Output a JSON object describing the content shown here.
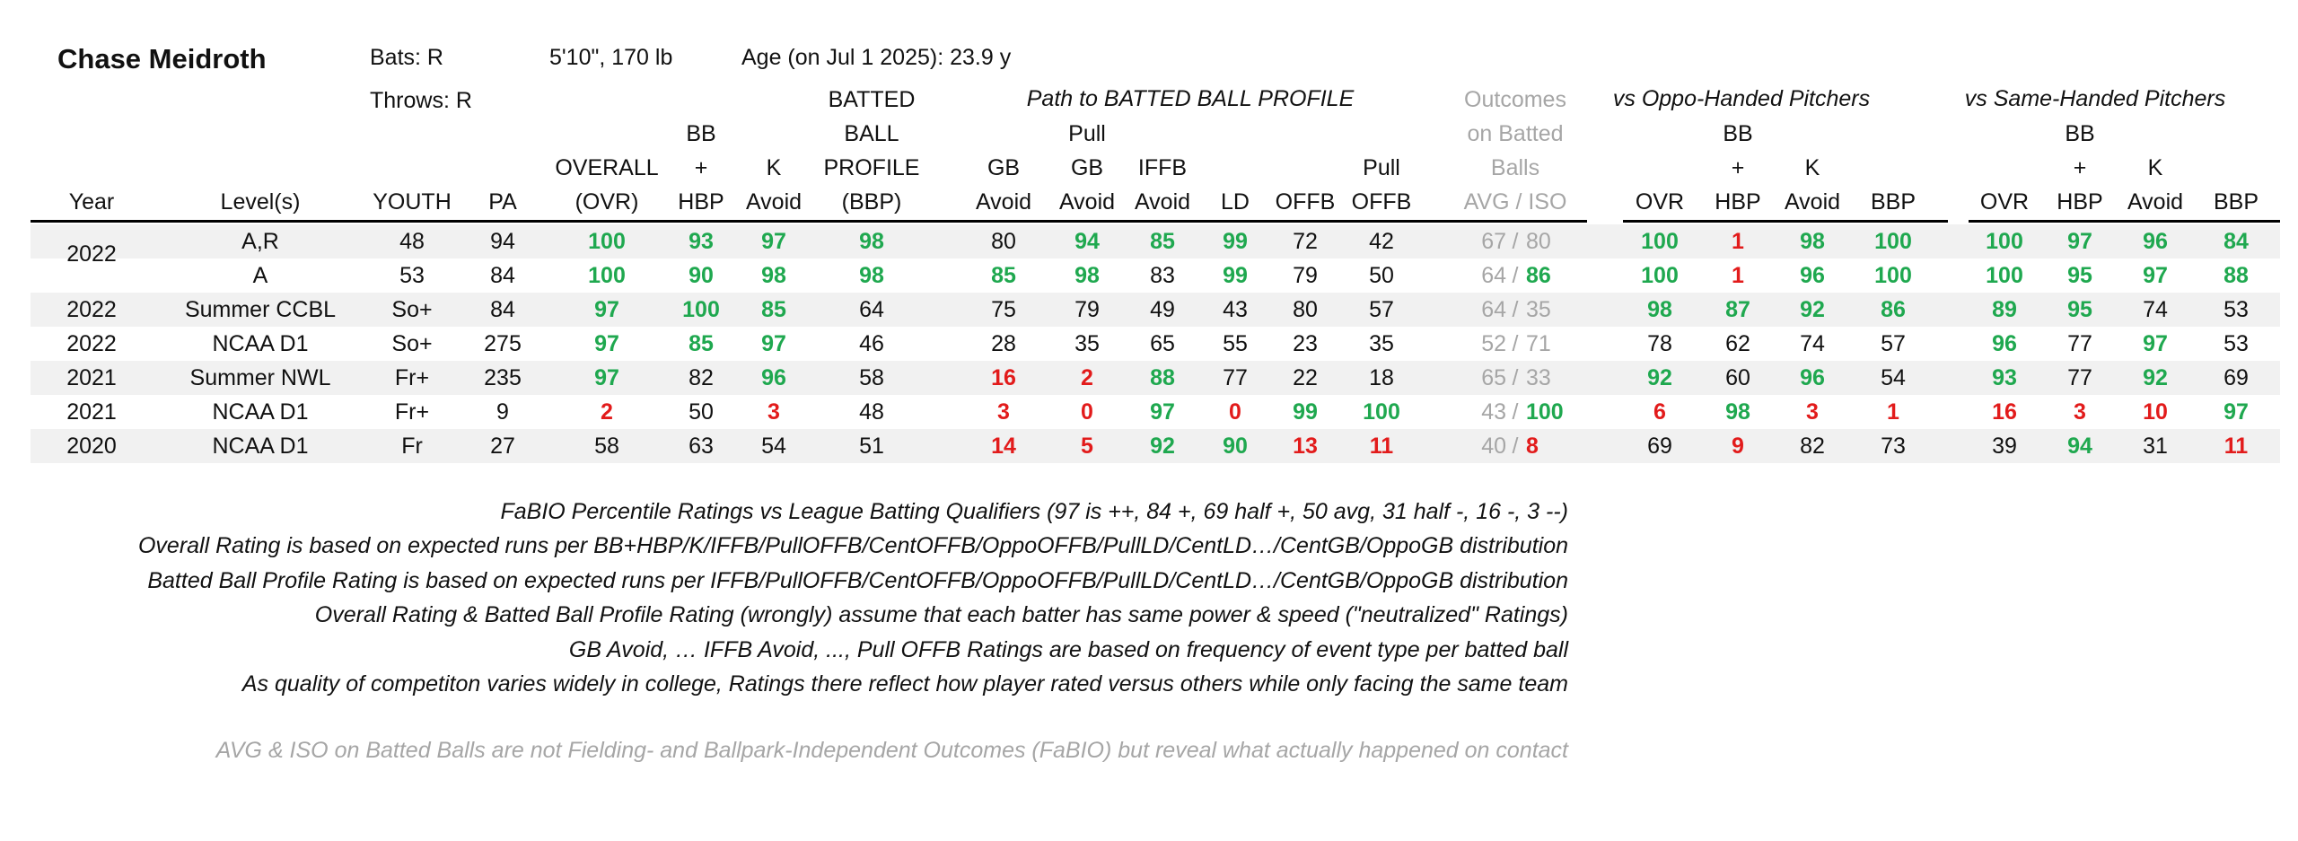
{
  "player": {
    "name": "Chase Meidroth",
    "bats": "Bats: R",
    "throws": "Throws: R",
    "size": "5'10\", 170 lb",
    "age": "Age (on Jul 1 2025): 23.9 y"
  },
  "groups": {
    "path": "Path to BATTED BALL PROFILE",
    "oppo": "vs Oppo-Handed Pitchers",
    "same": "vs Same-Handed Pitchers"
  },
  "headers": {
    "year": "Year",
    "level": "Level(s)",
    "youth": "YOUTH",
    "pa": "PA",
    "ovr_1": "OVERALL",
    "ovr_2": "(OVR)",
    "bb_1": "BB",
    "bb_2": "+",
    "bb_3": "HBP",
    "k_1": "K",
    "k_2": "Avoid",
    "bbp_1": "BATTED",
    "bbp_2": "BALL",
    "bbp_3": "PROFILE",
    "bbp_4": "(BBP)",
    "gb_1": "GB",
    "gb_2": "Avoid",
    "pgb_1": "Pull",
    "pgb_2": "GB",
    "pgb_3": "Avoid",
    "iffb_1": "IFFB",
    "iffb_2": "Avoid",
    "ld": "LD",
    "offb": "OFFB",
    "poffb_1": "Pull",
    "poffb_2": "OFFB",
    "out_1": "Outcomes",
    "out_2": "on Batted",
    "out_3": "Balls",
    "out_4": "AVG  /  ISO",
    "o_ovr": "OVR",
    "o_bb_1": "BB",
    "o_bb_2": "+",
    "o_bb_3": "HBP",
    "o_k_1": "K",
    "o_k_2": "Avoid",
    "o_bbp": "BBP",
    "s_ovr": "OVR",
    "s_bb_1": "BB",
    "s_bb_2": "+",
    "s_bb_3": "HBP",
    "s_k_1": "K",
    "s_k_2": "Avoid",
    "s_bbp": "BBP"
  },
  "rows": [
    {
      "year": "",
      "level": "A,R",
      "youth": "48",
      "pa": "94",
      "ovr": "100",
      "bb": "93",
      "k": "97",
      "bbp": "98",
      "gb": "80",
      "pgb": "94",
      "iffb": "85",
      "ld": "99",
      "offb": "72",
      "poffb": "42",
      "avg": "67",
      "iso": "80",
      "o_ovr": "100",
      "o_bb": "1",
      "o_k": "98",
      "o_bbp": "100",
      "s_ovr": "100",
      "s_bb": "97",
      "s_k": "96",
      "s_bbp": "84"
    },
    {
      "year": "",
      "level": "A",
      "youth": "53",
      "pa": "84",
      "ovr": "100",
      "bb": "90",
      "k": "98",
      "bbp": "98",
      "gb": "85",
      "pgb": "98",
      "iffb": "83",
      "ld": "99",
      "offb": "79",
      "poffb": "50",
      "avg": "64",
      "iso": "86",
      "o_ovr": "100",
      "o_bb": "1",
      "o_k": "96",
      "o_bbp": "100",
      "s_ovr": "100",
      "s_bb": "95",
      "s_k": "97",
      "s_bbp": "88"
    },
    {
      "year": "2022",
      "level": "Summer CCBL",
      "youth": "So+",
      "pa": "84",
      "ovr": "97",
      "bb": "100",
      "k": "85",
      "bbp": "64",
      "gb": "75",
      "pgb": "79",
      "iffb": "49",
      "ld": "43",
      "offb": "80",
      "poffb": "57",
      "avg": "64",
      "iso": "35",
      "o_ovr": "98",
      "o_bb": "87",
      "o_k": "92",
      "o_bbp": "86",
      "s_ovr": "89",
      "s_bb": "95",
      "s_k": "74",
      "s_bbp": "53"
    },
    {
      "year": "2022",
      "level": "NCAA D1",
      "youth": "So+",
      "pa": "275",
      "ovr": "97",
      "bb": "85",
      "k": "97",
      "bbp": "46",
      "gb": "28",
      "pgb": "35",
      "iffb": "65",
      "ld": "55",
      "offb": "23",
      "poffb": "35",
      "avg": "52",
      "iso": "71",
      "o_ovr": "78",
      "o_bb": "62",
      "o_k": "74",
      "o_bbp": "57",
      "s_ovr": "96",
      "s_bb": "77",
      "s_k": "97",
      "s_bbp": "53"
    },
    {
      "year": "2021",
      "level": "Summer NWL",
      "youth": "Fr+",
      "pa": "235",
      "ovr": "97",
      "bb": "82",
      "k": "96",
      "bbp": "58",
      "gb": "16",
      "pgb": "2",
      "iffb": "88",
      "ld": "77",
      "offb": "22",
      "poffb": "18",
      "avg": "65",
      "iso": "33",
      "o_ovr": "92",
      "o_bb": "60",
      "o_k": "96",
      "o_bbp": "54",
      "s_ovr": "93",
      "s_bb": "77",
      "s_k": "92",
      "s_bbp": "69"
    },
    {
      "year": "2021",
      "level": "NCAA D1",
      "youth": "Fr+",
      "pa": "9",
      "ovr": "2",
      "bb": "50",
      "k": "3",
      "bbp": "48",
      "gb": "3",
      "pgb": "0",
      "iffb": "97",
      "ld": "0",
      "offb": "99",
      "poffb": "100",
      "avg": "43",
      "iso": "100",
      "o_ovr": "6",
      "o_bb": "98",
      "o_k": "3",
      "o_bbp": "1",
      "s_ovr": "16",
      "s_bb": "3",
      "s_k": "10",
      "s_bbp": "97"
    },
    {
      "year": "2020",
      "level": "NCAA D1",
      "youth": "Fr",
      "pa": "27",
      "ovr": "58",
      "bb": "63",
      "k": "54",
      "bbp": "51",
      "gb": "14",
      "pgb": "5",
      "iffb": "92",
      "ld": "90",
      "offb": "13",
      "poffb": "11",
      "avg": "40",
      "iso": "8",
      "o_ovr": "69",
      "o_bb": "9",
      "o_k": "82",
      "o_bbp": "73",
      "s_ovr": "39",
      "s_bb": "94",
      "s_k": "31",
      "s_bbp": "11"
    }
  ],
  "merged_year": "2022",
  "iso_separator": "/",
  "notes": [
    "FaBIO Percentile Ratings vs League Batting Qualifiers (97 is ++, 84 +, 69 half +, 50 avg, 31 half -, 16 -, 3 --)",
    "Overall Rating is based on expected runs per BB+HBP/K/IFFB/PullOFFB/CentOFFB/OppoOFFB/PullLD/CentLD…/CentGB/OppoGB distribution",
    "Batted Ball Profile Rating is based on expected runs per IFFB/PullOFFB/CentOFFB/OppoOFFB/PullLD/CentLD…/CentGB/OppoGB distribution",
    "Overall Rating & Batted Ball Profile Rating (wrongly) assume that each batter has same power & speed (\"neutralized\" Ratings)",
    "GB Avoid, … IFFB Avoid, ..., Pull OFFB Ratings are based on frequency of event type per batted ball",
    "As quality of competiton varies widely in college, Ratings there reflect how player rated versus others while only facing the same team"
  ],
  "footnote": "AVG & ISO on Batted Balls are not Fielding- and Ballpark-Independent Outcomes (FaBIO) but reveal what actually happened on contact",
  "colors": {
    "high": "#1fa84f",
    "low": "#e21b1b",
    "muted": "#a6a6a6",
    "band": "#f1f1f1"
  }
}
